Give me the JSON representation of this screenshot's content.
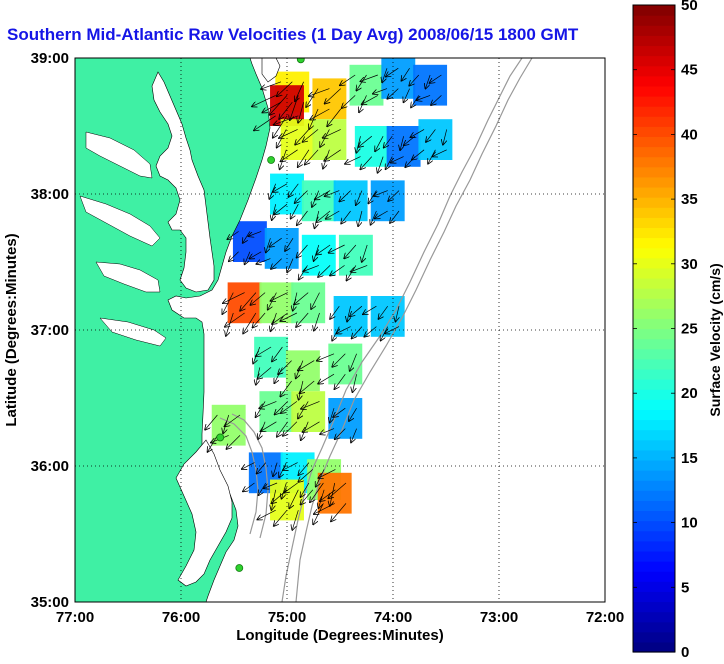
{
  "chart_data": {
    "type": "heatmap",
    "title": "Southern Mid-Atlantic Raw Velocities (1 Day Avg) 2008/06/15 1800 GMT",
    "xlabel": "Longitude (Degrees:Minutes)",
    "ylabel": "Latitude (Degrees:Minutes)",
    "x_ticks": [
      "77:00",
      "76:00",
      "75:00",
      "74:00",
      "73:00",
      "72:00"
    ],
    "y_ticks": [
      "35:00",
      "36:00",
      "37:00",
      "38:00",
      "39:00"
    ],
    "xlim": [
      -77,
      -72
    ],
    "ylim": [
      35,
      39
    ],
    "grid": true,
    "colorbar": {
      "label": "Surface Velocity (cm/s)",
      "min": 0,
      "max": 50,
      "ticks": [
        "0",
        "5",
        "10",
        "15",
        "20",
        "25",
        "30",
        "35",
        "40",
        "45",
        "50"
      ]
    },
    "colors": {
      "title": "#1515e6",
      "land": "#3ff0a4",
      "contour": "#999999",
      "arrow": "#000000",
      "station": "#2ed12e"
    },
    "stations": [
      {
        "lon": -74.87,
        "lat": 38.99
      },
      {
        "lon": -75.15,
        "lat": 38.25
      },
      {
        "lon": -75.63,
        "lat": 36.21
      },
      {
        "lon": -75.45,
        "lat": 35.25
      }
    ],
    "velocity_regions": [
      {
        "lon": -74.95,
        "lat": 38.75,
        "speed": 32
      },
      {
        "lon": -74.6,
        "lat": 38.7,
        "speed": 34
      },
      {
        "lon": -74.25,
        "lat": 38.8,
        "speed": 24
      },
      {
        "lon": -73.95,
        "lat": 38.85,
        "speed": 14
      },
      {
        "lon": -73.65,
        "lat": 38.8,
        "speed": 12
      },
      {
        "lon": -75.0,
        "lat": 38.65,
        "speed": 46
      },
      {
        "lon": -74.9,
        "lat": 38.4,
        "speed": 30
      },
      {
        "lon": -74.6,
        "lat": 38.4,
        "speed": 28
      },
      {
        "lon": -74.2,
        "lat": 38.35,
        "speed": 20
      },
      {
        "lon": -73.9,
        "lat": 38.35,
        "speed": 12
      },
      {
        "lon": -73.6,
        "lat": 38.4,
        "speed": 16
      },
      {
        "lon": -75.0,
        "lat": 38.0,
        "speed": 18
      },
      {
        "lon": -74.7,
        "lat": 37.95,
        "speed": 22
      },
      {
        "lon": -74.4,
        "lat": 37.95,
        "speed": 16
      },
      {
        "lon": -74.05,
        "lat": 37.95,
        "speed": 14
      },
      {
        "lon": -75.35,
        "lat": 37.65,
        "speed": 10
      },
      {
        "lon": -75.05,
        "lat": 37.6,
        "speed": 14
      },
      {
        "lon": -74.7,
        "lat": 37.55,
        "speed": 19
      },
      {
        "lon": -74.35,
        "lat": 37.55,
        "speed": 22
      },
      {
        "lon": -75.4,
        "lat": 37.2,
        "speed": 40
      },
      {
        "lon": -75.1,
        "lat": 37.2,
        "speed": 26
      },
      {
        "lon": -74.8,
        "lat": 37.2,
        "speed": 24
      },
      {
        "lon": -74.4,
        "lat": 37.1,
        "speed": 16
      },
      {
        "lon": -74.05,
        "lat": 37.1,
        "speed": 16
      },
      {
        "lon": -75.15,
        "lat": 36.8,
        "speed": 22
      },
      {
        "lon": -74.85,
        "lat": 36.7,
        "speed": 26
      },
      {
        "lon": -74.45,
        "lat": 36.75,
        "speed": 24
      },
      {
        "lon": -75.1,
        "lat": 36.4,
        "speed": 24
      },
      {
        "lon": -74.8,
        "lat": 36.4,
        "speed": 28
      },
      {
        "lon": -74.45,
        "lat": 36.35,
        "speed": 14
      },
      {
        "lon": -75.55,
        "lat": 36.3,
        "speed": 26
      },
      {
        "lon": -75.2,
        "lat": 35.95,
        "speed": 12
      },
      {
        "lon": -74.9,
        "lat": 35.95,
        "speed": 18
      },
      {
        "lon": -74.65,
        "lat": 35.9,
        "speed": 26
      },
      {
        "lon": -75.0,
        "lat": 35.75,
        "speed": 30
      },
      {
        "lon": -74.55,
        "lat": 35.8,
        "speed": 38
      }
    ]
  }
}
